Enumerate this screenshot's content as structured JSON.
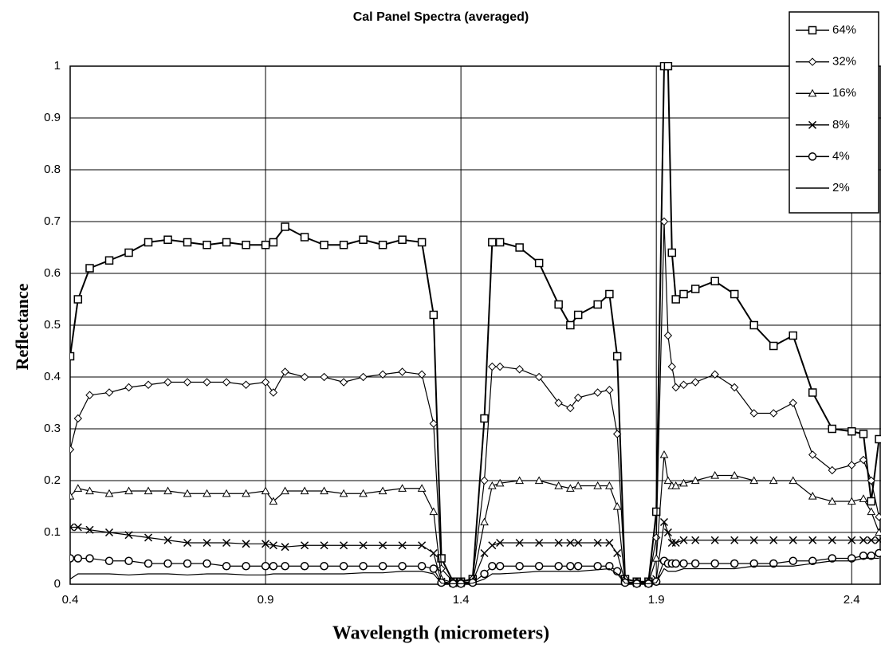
{
  "chart_data": {
    "type": "line",
    "title": "Cal Panel Spectra (averaged)",
    "x_label": "Wavelength (micrometers)",
    "y_label": "Reflectance",
    "x": [
      0.4,
      0.42,
      0.45,
      0.5,
      0.55,
      0.6,
      0.65,
      0.7,
      0.75,
      0.8,
      0.85,
      0.9,
      0.92,
      0.95,
      1.0,
      1.05,
      1.1,
      1.15,
      1.2,
      1.25,
      1.3,
      1.33,
      1.35,
      1.38,
      1.4,
      1.43,
      1.46,
      1.48,
      1.5,
      1.55,
      1.6,
      1.65,
      1.68,
      1.7,
      1.75,
      1.78,
      1.8,
      1.82,
      1.85,
      1.88,
      1.9,
      1.92,
      1.93,
      1.94,
      1.95,
      1.97,
      2.0,
      2.05,
      2.1,
      2.15,
      2.2,
      2.25,
      2.3,
      2.35,
      2.4,
      2.43,
      2.45,
      2.47
    ],
    "series": [
      {
        "name": "64%",
        "color": "#000000",
        "marker": "square",
        "values": [
          0.44,
          0.55,
          0.61,
          0.625,
          0.64,
          0.66,
          0.665,
          0.66,
          0.655,
          0.66,
          0.655,
          0.655,
          0.66,
          0.69,
          0.67,
          0.655,
          0.655,
          0.665,
          0.655,
          0.665,
          0.66,
          0.52,
          0.05,
          0.005,
          0.005,
          0.01,
          0.32,
          0.66,
          0.66,
          0.65,
          0.62,
          0.54,
          0.5,
          0.52,
          0.54,
          0.56,
          0.44,
          0.01,
          0.005,
          0.005,
          0.14,
          1,
          1,
          0.64,
          0.55,
          0.56,
          0.57,
          0.585,
          0.56,
          0.5,
          0.46,
          0.48,
          0.37,
          0.3,
          0.295,
          0.29,
          0.16,
          0.28
        ]
      },
      {
        "name": "32%",
        "color": "#000000",
        "marker": "diamond",
        "values": [
          0.26,
          0.32,
          0.365,
          0.37,
          0.38,
          0.385,
          0.39,
          0.39,
          0.39,
          0.39,
          0.385,
          0.39,
          0.37,
          0.41,
          0.4,
          0.4,
          0.39,
          0.4,
          0.405,
          0.41,
          0.405,
          0.31,
          0.03,
          0.005,
          0.005,
          0.01,
          0.2,
          0.42,
          0.42,
          0.415,
          0.4,
          0.35,
          0.34,
          0.36,
          0.37,
          0.375,
          0.29,
          0.01,
          0.005,
          0.005,
          0.09,
          0.7,
          0.48,
          0.42,
          0.38,
          0.385,
          0.39,
          0.405,
          0.38,
          0.33,
          0.33,
          0.35,
          0.25,
          0.22,
          0.23,
          0.24,
          0.2,
          0.13
        ]
      },
      {
        "name": "16%",
        "color": "#000000",
        "marker": "triangle",
        "values": [
          0.17,
          0.185,
          0.18,
          0.175,
          0.18,
          0.18,
          0.18,
          0.175,
          0.175,
          0.175,
          0.175,
          0.18,
          0.16,
          0.18,
          0.18,
          0.18,
          0.175,
          0.175,
          0.18,
          0.185,
          0.185,
          0.14,
          0.01,
          0.003,
          0.003,
          0.005,
          0.12,
          0.19,
          0.195,
          0.2,
          0.2,
          0.19,
          0.185,
          0.19,
          0.19,
          0.19,
          0.15,
          0.005,
          0.003,
          0.003,
          0.05,
          0.25,
          0.2,
          0.19,
          0.19,
          0.195,
          0.2,
          0.21,
          0.21,
          0.2,
          0.2,
          0.2,
          0.17,
          0.16,
          0.16,
          0.165,
          0.14,
          0.1
        ]
      },
      {
        "name": "8%",
        "color": "#000000",
        "marker": "x",
        "values": [
          0.11,
          0.11,
          0.105,
          0.1,
          0.095,
          0.09,
          0.085,
          0.08,
          0.08,
          0.08,
          0.078,
          0.078,
          0.075,
          0.072,
          0.075,
          0.075,
          0.075,
          0.075,
          0.075,
          0.075,
          0.075,
          0.06,
          0.005,
          0.002,
          0.002,
          0.005,
          0.06,
          0.075,
          0.08,
          0.08,
          0.08,
          0.08,
          0.08,
          0.08,
          0.08,
          0.08,
          0.06,
          0.005,
          0.002,
          0.002,
          0.01,
          0.12,
          0.1,
          0.08,
          0.08,
          0.085,
          0.085,
          0.085,
          0.085,
          0.085,
          0.085,
          0.085,
          0.085,
          0.085,
          0.085,
          0.085,
          0.085,
          0.085
        ]
      },
      {
        "name": "4%",
        "color": "#000000",
        "marker": "circle",
        "values": [
          0.05,
          0.05,
          0.05,
          0.045,
          0.045,
          0.04,
          0.04,
          0.04,
          0.04,
          0.035,
          0.035,
          0.035,
          0.035,
          0.035,
          0.035,
          0.035,
          0.035,
          0.035,
          0.035,
          0.035,
          0.035,
          0.03,
          0.003,
          0.001,
          0.001,
          0.003,
          0.02,
          0.035,
          0.035,
          0.035,
          0.035,
          0.035,
          0.035,
          0.035,
          0.035,
          0.035,
          0.025,
          0.003,
          0.001,
          0.001,
          0.005,
          0.045,
          0.04,
          0.04,
          0.04,
          0.04,
          0.04,
          0.04,
          0.04,
          0.04,
          0.04,
          0.045,
          0.045,
          0.05,
          0.05,
          0.055,
          0.055,
          0.06
        ]
      },
      {
        "name": "2%",
        "color": "#000000",
        "marker": "none",
        "values": [
          0.01,
          0.02,
          0.02,
          0.02,
          0.018,
          0.02,
          0.02,
          0.018,
          0.02,
          0.02,
          0.018,
          0.018,
          0.02,
          0.02,
          0.02,
          0.02,
          0.02,
          0.022,
          0.022,
          0.025,
          0.025,
          0.02,
          0.002,
          0.001,
          0.001,
          0.002,
          0.01,
          0.02,
          0.02,
          0.022,
          0.025,
          0.025,
          0.025,
          0.025,
          0.028,
          0.03,
          0.02,
          0.002,
          0.001,
          0.001,
          0.003,
          0.03,
          0.025,
          0.025,
          0.025,
          0.03,
          0.03,
          0.03,
          0.03,
          0.035,
          0.035,
          0.035,
          0.04,
          0.045,
          0.045,
          0.05,
          0.05,
          0.05
        ]
      }
    ],
    "xlim": [
      0.4,
      2.475
    ],
    "xticks": [
      0.4,
      0.9,
      1.4,
      1.9,
      2.4
    ],
    "ylim": [
      0,
      1
    ],
    "yticks": [
      0,
      0.1,
      0.2,
      0.3,
      0.4,
      0.5,
      0.6,
      0.7,
      0.8,
      0.9,
      1
    ],
    "grid": true,
    "legend": "top-right"
  }
}
